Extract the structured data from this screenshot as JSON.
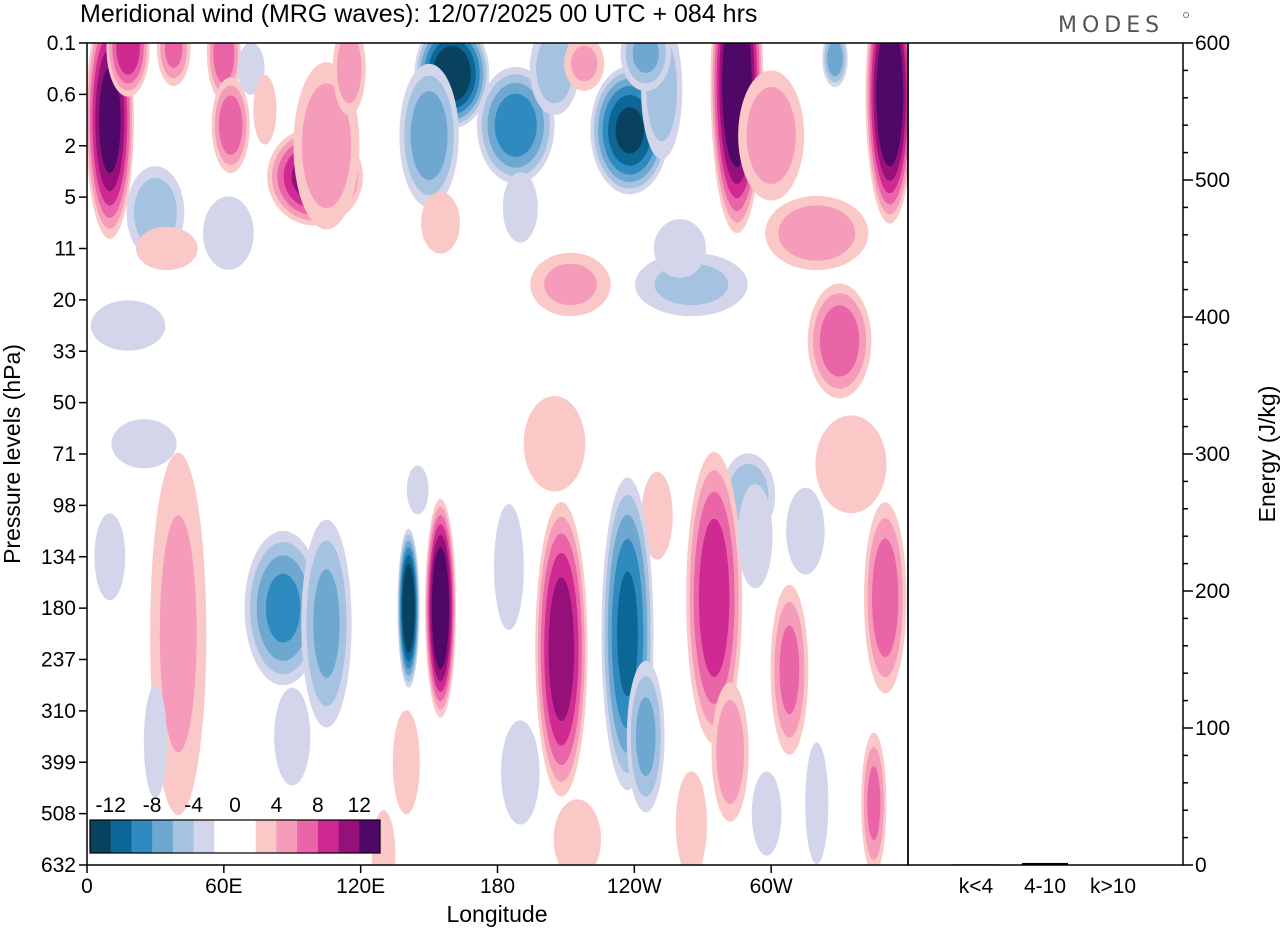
{
  "chart_data": {
    "type": "heatmap",
    "title": "Meridional wind (MRG waves):  12/07/2025  00 UTC  + 084 hrs",
    "logo_text": "MODES",
    "xlabel": "Longitude",
    "ylabel": "Pressure levels (hPa)",
    "x_ticks": [
      "0",
      "60E",
      "120E",
      "180",
      "120W",
      "60W"
    ],
    "x_tick_lon": [
      0,
      60,
      120,
      180,
      240,
      300
    ],
    "xlim": [
      0,
      360
    ],
    "y_ticks": [
      "0.1",
      "0.6",
      "2",
      "5",
      "11",
      "20",
      "33",
      "50",
      "71",
      "98",
      "134",
      "180",
      "237",
      "310",
      "399",
      "508",
      "632"
    ],
    "colorbar": {
      "labels": [
        "-12",
        "-8",
        "-4",
        "0",
        "4",
        "8",
        "12"
      ],
      "colors": [
        "#08425e",
        "#0c6696",
        "#2f8bbf",
        "#6ea8d0",
        "#a5c3e0",
        "#d3d6ea",
        "#ffffff",
        "#ffffff",
        "#fbc8c8",
        "#f59cbb",
        "#ea64a8",
        "#cf2a92",
        "#96107a",
        "#4f0868"
      ]
    },
    "energy": {
      "ylabel": "Energy (J/kg)",
      "ylim": [
        0,
        600
      ],
      "y_ticks": [
        "0",
        "100",
        "200",
        "300",
        "400",
        "500",
        "600"
      ],
      "categories": [
        "k<4",
        "4-10",
        "k>10"
      ],
      "values": [
        0.5,
        1.5,
        0.3
      ]
    },
    "blobs": [
      {
        "lon": 10,
        "lev": 1.5,
        "v": 13,
        "w": 11,
        "h": 2.4
      },
      {
        "lon": 18,
        "lev": 0.1,
        "v": 9,
        "w": 10,
        "h": 1.0
      },
      {
        "lon": 38,
        "lev": 0.1,
        "v": 6,
        "w": 8,
        "h": 0.8
      },
      {
        "lon": 60,
        "lev": 0.2,
        "v": 7,
        "w": 8,
        "h": 1.0
      },
      {
        "lon": 72,
        "lev": 0.5,
        "v": -3,
        "w": 7,
        "h": 0.6
      },
      {
        "lon": 63,
        "lev": 1.6,
        "v": 7,
        "w": 9,
        "h": 1.0
      },
      {
        "lon": 78,
        "lev": 1.3,
        "v": 3,
        "w": 6,
        "h": 0.8
      },
      {
        "lon": 100,
        "lev": 2.6,
        "v": 11,
        "w": 22,
        "h": 1.0
      },
      {
        "lon": 105,
        "lev": 2.0,
        "v": 5,
        "w": 16,
        "h": 1.8
      },
      {
        "lon": 115,
        "lev": 0.5,
        "v": 5,
        "w": 8,
        "h": 1.0
      },
      {
        "lon": 160,
        "lev": 0.6,
        "v": -14,
        "w": 17,
        "h": 1.1
      },
      {
        "lon": 150,
        "lev": 1.8,
        "v": -7,
        "w": 14,
        "h": 1.5
      },
      {
        "lon": 188,
        "lev": 1.6,
        "v": -9,
        "w": 18,
        "h": 1.2
      },
      {
        "lon": 205,
        "lev": 0.5,
        "v": -5,
        "w": 12,
        "h": 1.0
      },
      {
        "lon": 218,
        "lev": 0.4,
        "v": 4,
        "w": 10,
        "h": 0.6
      },
      {
        "lon": 238,
        "lev": 1.7,
        "v": -12,
        "w": 18,
        "h": 1.3
      },
      {
        "lon": 252,
        "lev": 0.9,
        "v": -5,
        "w": 10,
        "h": 1.5
      },
      {
        "lon": 245,
        "lev": 0.2,
        "v": -6,
        "w": 12,
        "h": 0.8
      },
      {
        "lon": 285,
        "lev": 0.8,
        "v": 15,
        "w": 12,
        "h": 3.0
      },
      {
        "lon": 300,
        "lev": 1.8,
        "v": 5,
        "w": 16,
        "h": 1.4
      },
      {
        "lon": 328,
        "lev": 0.3,
        "v": -7,
        "w": 6,
        "h": 0.6
      },
      {
        "lon": 352,
        "lev": 1.0,
        "v": 15,
        "w": 11,
        "h": 2.6
      },
      {
        "lon": 30,
        "lev": 3.3,
        "v": -5,
        "w": 14,
        "h": 1.0
      },
      {
        "lon": 62,
        "lev": 3.7,
        "v": -2.2,
        "w": 14,
        "h": 0.9
      },
      {
        "lon": 155,
        "lev": 3.5,
        "v": 3.2,
        "w": 10,
        "h": 0.7
      },
      {
        "lon": 190,
        "lev": 3.2,
        "v": -3.2,
        "w": 9,
        "h": 0.8
      },
      {
        "lon": 320,
        "lev": 3.7,
        "v": 5,
        "w": 25,
        "h": 0.8
      },
      {
        "lon": 265,
        "lev": 4.7,
        "v": -4,
        "w": 28,
        "h": 0.7
      },
      {
        "lon": 212,
        "lev": 4.7,
        "v": 4,
        "w": 20,
        "h": 0.7
      },
      {
        "lon": 35,
        "lev": 4.0,
        "v": 3,
        "w": 16,
        "h": 0.5
      },
      {
        "lon": 260,
        "lev": 4.0,
        "v": -2.5,
        "w": 14,
        "h": 0.7
      },
      {
        "lon": 18,
        "lev": 5.5,
        "v": -2.5,
        "w": 20,
        "h": 0.6
      },
      {
        "lon": 330,
        "lev": 5.8,
        "v": 7,
        "w": 15,
        "h": 1.2
      },
      {
        "lon": 25,
        "lev": 7.8,
        "v": -2.2,
        "w": 18,
        "h": 0.6
      },
      {
        "lon": 205,
        "lev": 7.8,
        "v": 3,
        "w": 16,
        "h": 1.1
      },
      {
        "lon": 335,
        "lev": 8.2,
        "v": 3.5,
        "w": 18,
        "h": 1.1
      },
      {
        "lon": 145,
        "lev": 8.7,
        "v": -2.2,
        "w": 6,
        "h": 0.6
      },
      {
        "lon": 290,
        "lev": 8.8,
        "v": -5,
        "w": 13,
        "h": 0.9
      },
      {
        "lon": 315,
        "lev": 9.5,
        "v": -3,
        "w": 10,
        "h": 1.0
      },
      {
        "lon": 250,
        "lev": 9.2,
        "v": 3.2,
        "w": 8,
        "h": 1.0
      },
      {
        "lon": 10,
        "lev": 10.0,
        "v": -3,
        "w": 8,
        "h": 1.0
      },
      {
        "lon": 40,
        "lev": 11.5,
        "v": 4,
        "w": 14,
        "h": 4.0
      },
      {
        "lon": 86,
        "lev": 11.0,
        "v": -8,
        "w": 18,
        "h": 1.6
      },
      {
        "lon": 105,
        "lev": 11.3,
        "v": -6,
        "w": 12,
        "h": 2.2
      },
      {
        "lon": 141,
        "lev": 11.0,
        "v": -15,
        "w": 5,
        "h": 1.6
      },
      {
        "lon": 155,
        "lev": 11.0,
        "v": 15,
        "w": 7,
        "h": 2.2
      },
      {
        "lon": 185,
        "lev": 10.2,
        "v": -2.5,
        "w": 8,
        "h": 1.5
      },
      {
        "lon": 208,
        "lev": 11.8,
        "v": 11,
        "w": 12,
        "h": 3.0
      },
      {
        "lon": 237,
        "lev": 11.5,
        "v": -10,
        "w": 12,
        "h": 3.2
      },
      {
        "lon": 245,
        "lev": 13.5,
        "v": -6,
        "w": 9,
        "h": 1.6
      },
      {
        "lon": 275,
        "lev": 10.8,
        "v": 9,
        "w": 13,
        "h": 3.0
      },
      {
        "lon": 282,
        "lev": 13.8,
        "v": 5,
        "w": 9,
        "h": 1.5
      },
      {
        "lon": 308,
        "lev": 12.2,
        "v": 6,
        "w": 9,
        "h": 1.8
      },
      {
        "lon": 293,
        "lev": 9.6,
        "v": -3,
        "w": 9,
        "h": 1.2
      },
      {
        "lon": 350,
        "lev": 10.8,
        "v": 7,
        "w": 10,
        "h": 2.0
      },
      {
        "lon": 345,
        "lev": 14.8,
        "v": 6,
        "w": 6,
        "h": 1.5
      },
      {
        "lon": 320,
        "lev": 14.8,
        "v": -3,
        "w": 6,
        "h": 1.4
      },
      {
        "lon": 30,
        "lev": 13.6,
        "v": -3,
        "w": 6,
        "h": 1.3
      },
      {
        "lon": 190,
        "lev": 14.2,
        "v": -3,
        "w": 10,
        "h": 1.2
      },
      {
        "lon": 140,
        "lev": 14.0,
        "v": 3,
        "w": 7,
        "h": 1.2
      },
      {
        "lon": 90,
        "lev": 13.5,
        "v": -2.2,
        "w": 10,
        "h": 1.2
      },
      {
        "lon": 298,
        "lev": 15.0,
        "v": -2.5,
        "w": 8,
        "h": 1.0
      },
      {
        "lon": 215,
        "lev": 15.5,
        "v": 3.5,
        "w": 12,
        "h": 0.9
      },
      {
        "lon": 265,
        "lev": 15.2,
        "v": 3.2,
        "w": 8,
        "h": 1.2
      },
      {
        "lon": 130,
        "lev": 15.8,
        "v": 3.5,
        "w": 6,
        "h": 1.0
      }
    ]
  }
}
